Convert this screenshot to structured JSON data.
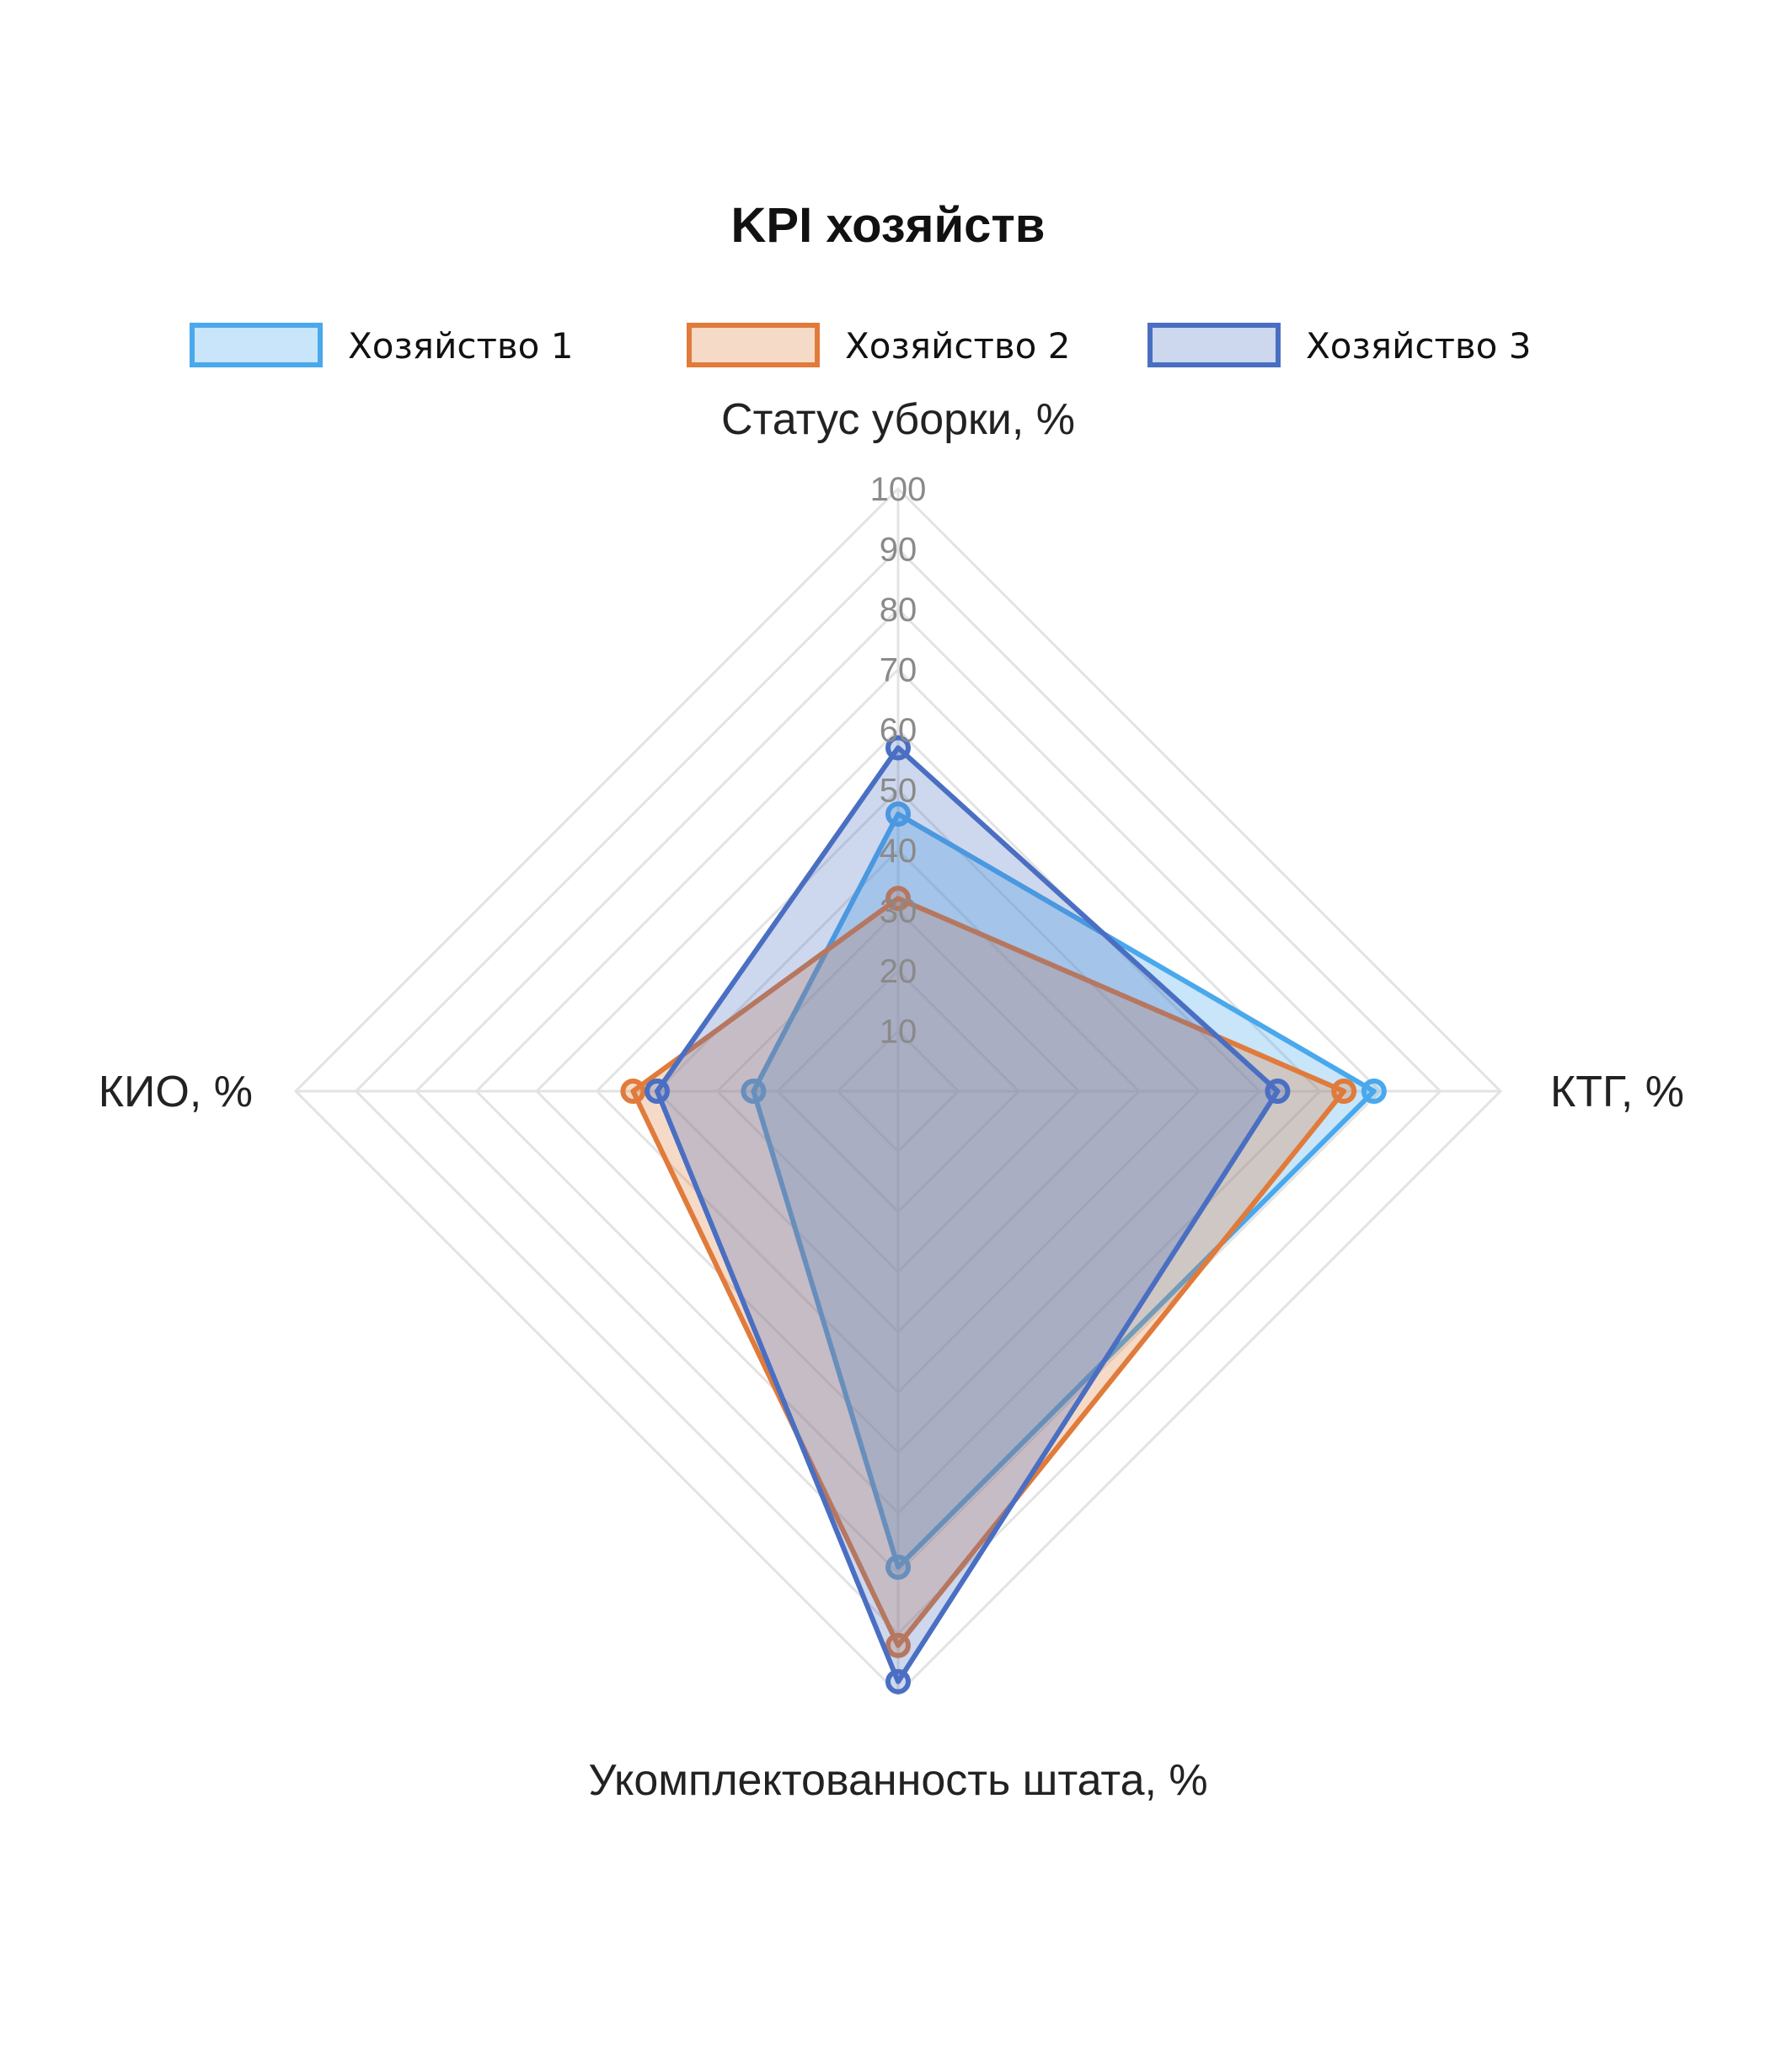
{
  "chart_data": {
    "type": "radar",
    "title": "KPI хозяйств",
    "axes": [
      "Статус уборки, %",
      "КТГ, %",
      "Укомплектованность штата, %",
      "КИО, %"
    ],
    "ticks": [
      10,
      20,
      30,
      40,
      50,
      60,
      70,
      80,
      90,
      100
    ],
    "rlim": [
      0,
      100
    ],
    "grid": true,
    "legend_position": "top",
    "series": [
      {
        "name": "Хозяйство 1",
        "values": [
          46,
          79,
          79,
          24
        ],
        "color": "#4aa8ec",
        "fill": "rgba(74,168,236,0.30)"
      },
      {
        "name": "Хозяйство 2",
        "values": [
          32,
          74,
          92,
          44
        ],
        "color": "#e07b3b",
        "fill": "rgba(224,123,59,0.28)"
      },
      {
        "name": "Хозяйство 3",
        "values": [
          57,
          63,
          98,
          40
        ],
        "color": "#4a6fc2",
        "fill": "rgba(74,111,194,0.28)"
      }
    ]
  }
}
